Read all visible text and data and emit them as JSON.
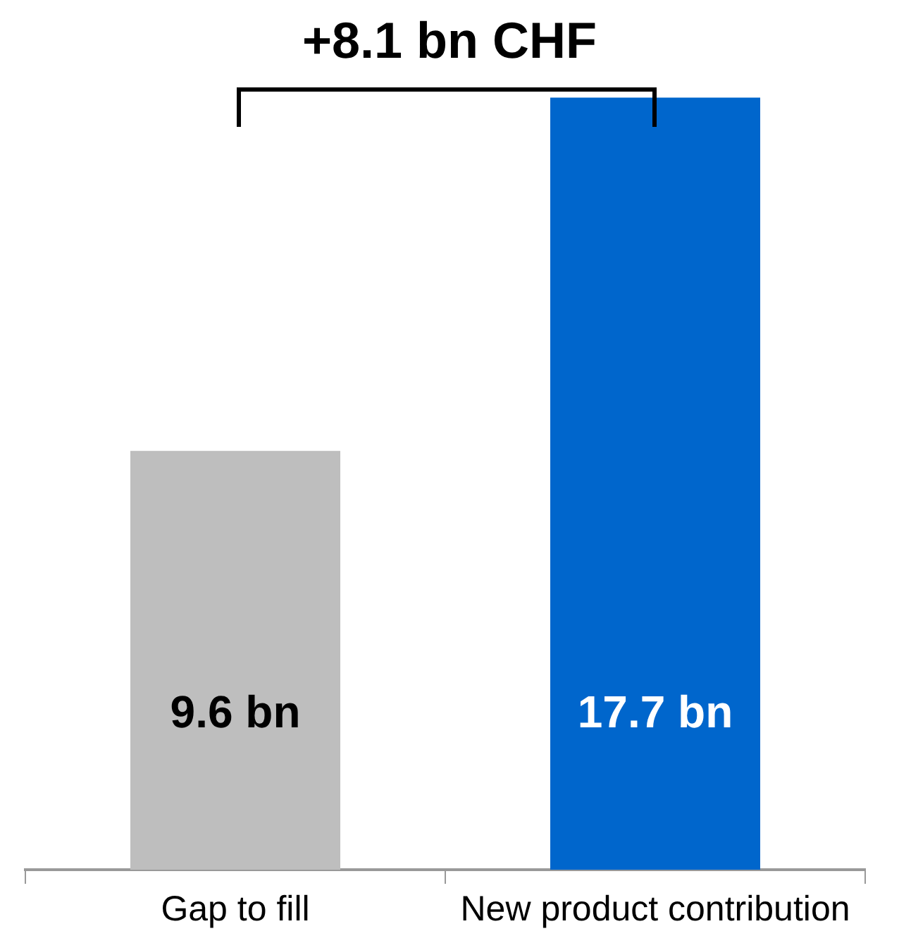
{
  "chart_data": {
    "type": "bar",
    "categories": [
      "Gap to fill",
      "New product contribution"
    ],
    "values": [
      9.6,
      17.7
    ],
    "colors": [
      "#bebebe",
      "#0066cc"
    ],
    "value_labels": [
      "9.6 bn",
      "17.7 bn"
    ],
    "annotations": [
      "+8.1 bn CHF"
    ],
    "grid": false,
    "legend": false
  }
}
